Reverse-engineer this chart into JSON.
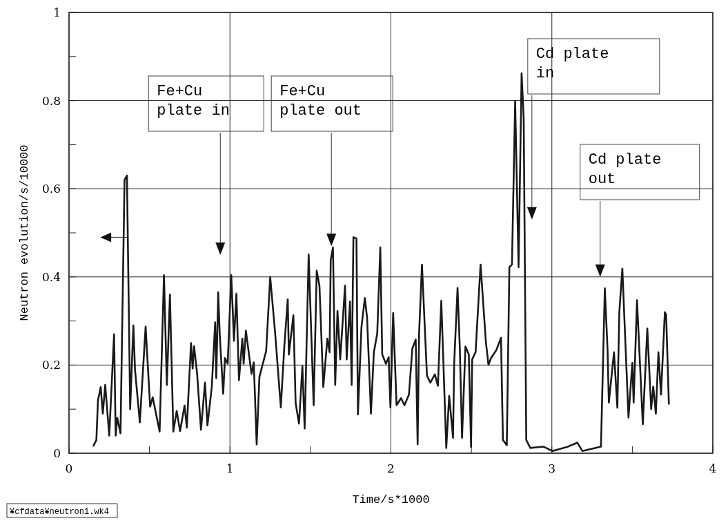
{
  "chart_data": {
    "type": "line",
    "xlabel": "Time/s*1000",
    "ylabel": "Neutron evolution/s/10000",
    "xlim": [
      0,
      4
    ],
    "ylim": [
      0,
      1
    ],
    "xticks": [
      0,
      {
        "value": 0.5,
        "label": null
      },
      1,
      {
        "value": 1.5,
        "label": null
      },
      2,
      {
        "value": 2.5,
        "label": null
      },
      3,
      {
        "value": 3.5,
        "label": null
      },
      4
    ],
    "yticks": [
      0,
      {
        "value": 0.1,
        "label": null
      },
      0.2,
      {
        "value": 0.3,
        "label": null
      },
      0.4,
      {
        "value": 0.5,
        "label": null
      },
      0.6,
      {
        "value": 0.7,
        "label": null
      },
      0.8,
      {
        "value": 0.9,
        "label": null
      },
      1
    ],
    "grid": true,
    "marker": "none",
    "line_style": "solid",
    "series": [
      {
        "color": "#1a1a1a",
        "x": [
          0.152,
          0.17,
          0.18,
          0.197,
          0.21,
          0.225,
          0.25,
          0.28,
          0.29,
          0.3,
          0.32,
          0.345,
          0.36,
          0.38,
          0.4,
          0.41,
          0.44,
          0.476,
          0.504,
          0.52,
          0.563,
          0.59,
          0.608,
          0.627,
          0.648,
          0.669,
          0.69,
          0.718,
          0.732,
          0.758,
          0.768,
          0.777,
          0.796,
          0.82,
          0.845,
          0.86,
          0.887,
          0.908,
          0.915,
          0.927,
          0.937,
          0.958,
          0.969,
          0.986,
          1.008,
          1.025,
          1.04,
          1.056,
          1.077,
          1.085,
          1.099,
          1.134,
          1.148,
          1.166,
          1.183,
          1.225,
          1.25,
          1.28,
          1.316,
          1.338,
          1.359,
          1.366,
          1.394,
          1.408,
          1.429,
          1.45,
          1.464,
          1.489,
          1.52,
          1.539,
          1.556,
          1.58,
          1.605,
          1.619,
          1.626,
          1.64,
          1.654,
          1.668,
          1.685,
          1.715,
          1.725,
          1.746,
          1.756,
          1.767,
          1.786,
          1.795,
          1.817,
          1.838,
          1.852,
          1.876,
          1.894,
          1.915,
          1.934,
          1.946,
          1.969,
          1.986,
          1.997,
          2.014,
          2.035,
          2.063,
          2.084,
          2.112,
          2.133,
          2.154,
          2.166,
          2.175,
          2.193,
          2.224,
          2.245,
          2.273,
          2.292,
          2.313,
          2.344,
          2.362,
          2.386,
          2.393,
          2.414,
          2.428,
          2.442,
          2.463,
          2.484,
          2.498,
          2.505,
          2.526,
          2.557,
          2.59,
          2.606,
          2.622,
          2.655,
          2.684,
          2.696,
          2.72,
          2.736,
          2.752,
          2.772,
          2.793,
          2.812,
          2.825,
          2.841,
          2.866,
          2.947,
          3.004,
          3.101,
          3.158,
          3.19,
          3.305,
          3.329,
          3.346,
          3.354,
          3.386,
          3.407,
          3.419,
          3.438,
          3.451,
          3.476,
          3.5,
          3.508,
          3.529,
          3.565,
          3.593,
          3.617,
          3.63,
          3.646,
          3.662,
          3.678,
          3.702,
          3.71,
          3.727
        ],
        "values": [
          0.017,
          0.03,
          0.12,
          0.15,
          0.09,
          0.155,
          0.04,
          0.27,
          0.04,
          0.08,
          0.045,
          0.62,
          0.63,
          0.1,
          0.29,
          0.19,
          0.07,
          0.287,
          0.106,
          0.127,
          0.049,
          0.404,
          0.155,
          0.36,
          0.049,
          0.096,
          0.05,
          0.108,
          0.058,
          0.25,
          0.192,
          0.243,
          0.18,
          0.053,
          0.16,
          0.063,
          0.15,
          0.297,
          0.17,
          0.365,
          0.265,
          0.135,
          0.216,
          0.203,
          0.404,
          0.255,
          0.362,
          0.166,
          0.26,
          0.203,
          0.278,
          0.18,
          0.206,
          0.02,
          0.173,
          0.232,
          0.4,
          0.276,
          0.104,
          0.244,
          0.349,
          0.224,
          0.313,
          0.114,
          0.067,
          0.197,
          0.056,
          0.451,
          0.109,
          0.414,
          0.38,
          0.15,
          0.26,
          0.229,
          0.438,
          0.467,
          0.155,
          0.323,
          0.213,
          0.38,
          0.213,
          0.344,
          0.155,
          0.49,
          0.487,
          0.088,
          0.286,
          0.352,
          0.307,
          0.09,
          0.229,
          0.271,
          0.467,
          0.224,
          0.203,
          0.218,
          0.104,
          0.318,
          0.109,
          0.125,
          0.109,
          0.133,
          0.237,
          0.258,
          0.02,
          0.271,
          0.428,
          0.176,
          0.16,
          0.179,
          0.153,
          0.346,
          0.012,
          0.13,
          0.035,
          0.203,
          0.375,
          0.239,
          0.035,
          0.242,
          0.224,
          0.014,
          0.213,
          0.229,
          0.428,
          0.253,
          0.2,
          0.216,
          0.234,
          0.262,
          0.03,
          0.018,
          0.422,
          0.428,
          0.799,
          0.422,
          0.862,
          0.759,
          0.03,
          0.012,
          0.015,
          0.005,
          0.015,
          0.024,
          0.005,
          0.015,
          0.374,
          0.235,
          0.115,
          0.229,
          0.103,
          0.32,
          0.419,
          0.302,
          0.081,
          0.205,
          0.115,
          0.347,
          0.066,
          0.283,
          0.1,
          0.151,
          0.09,
          0.229,
          0.133,
          0.32,
          0.314,
          0.112
        ]
      }
    ],
    "annotations": [
      "Fe+Cu\nplate in",
      "Fe+Cu\nplate out",
      "Cd plate\nin",
      "Cd plate\nout",
      "¥cfdata¥neutron1.wk4"
    ]
  }
}
